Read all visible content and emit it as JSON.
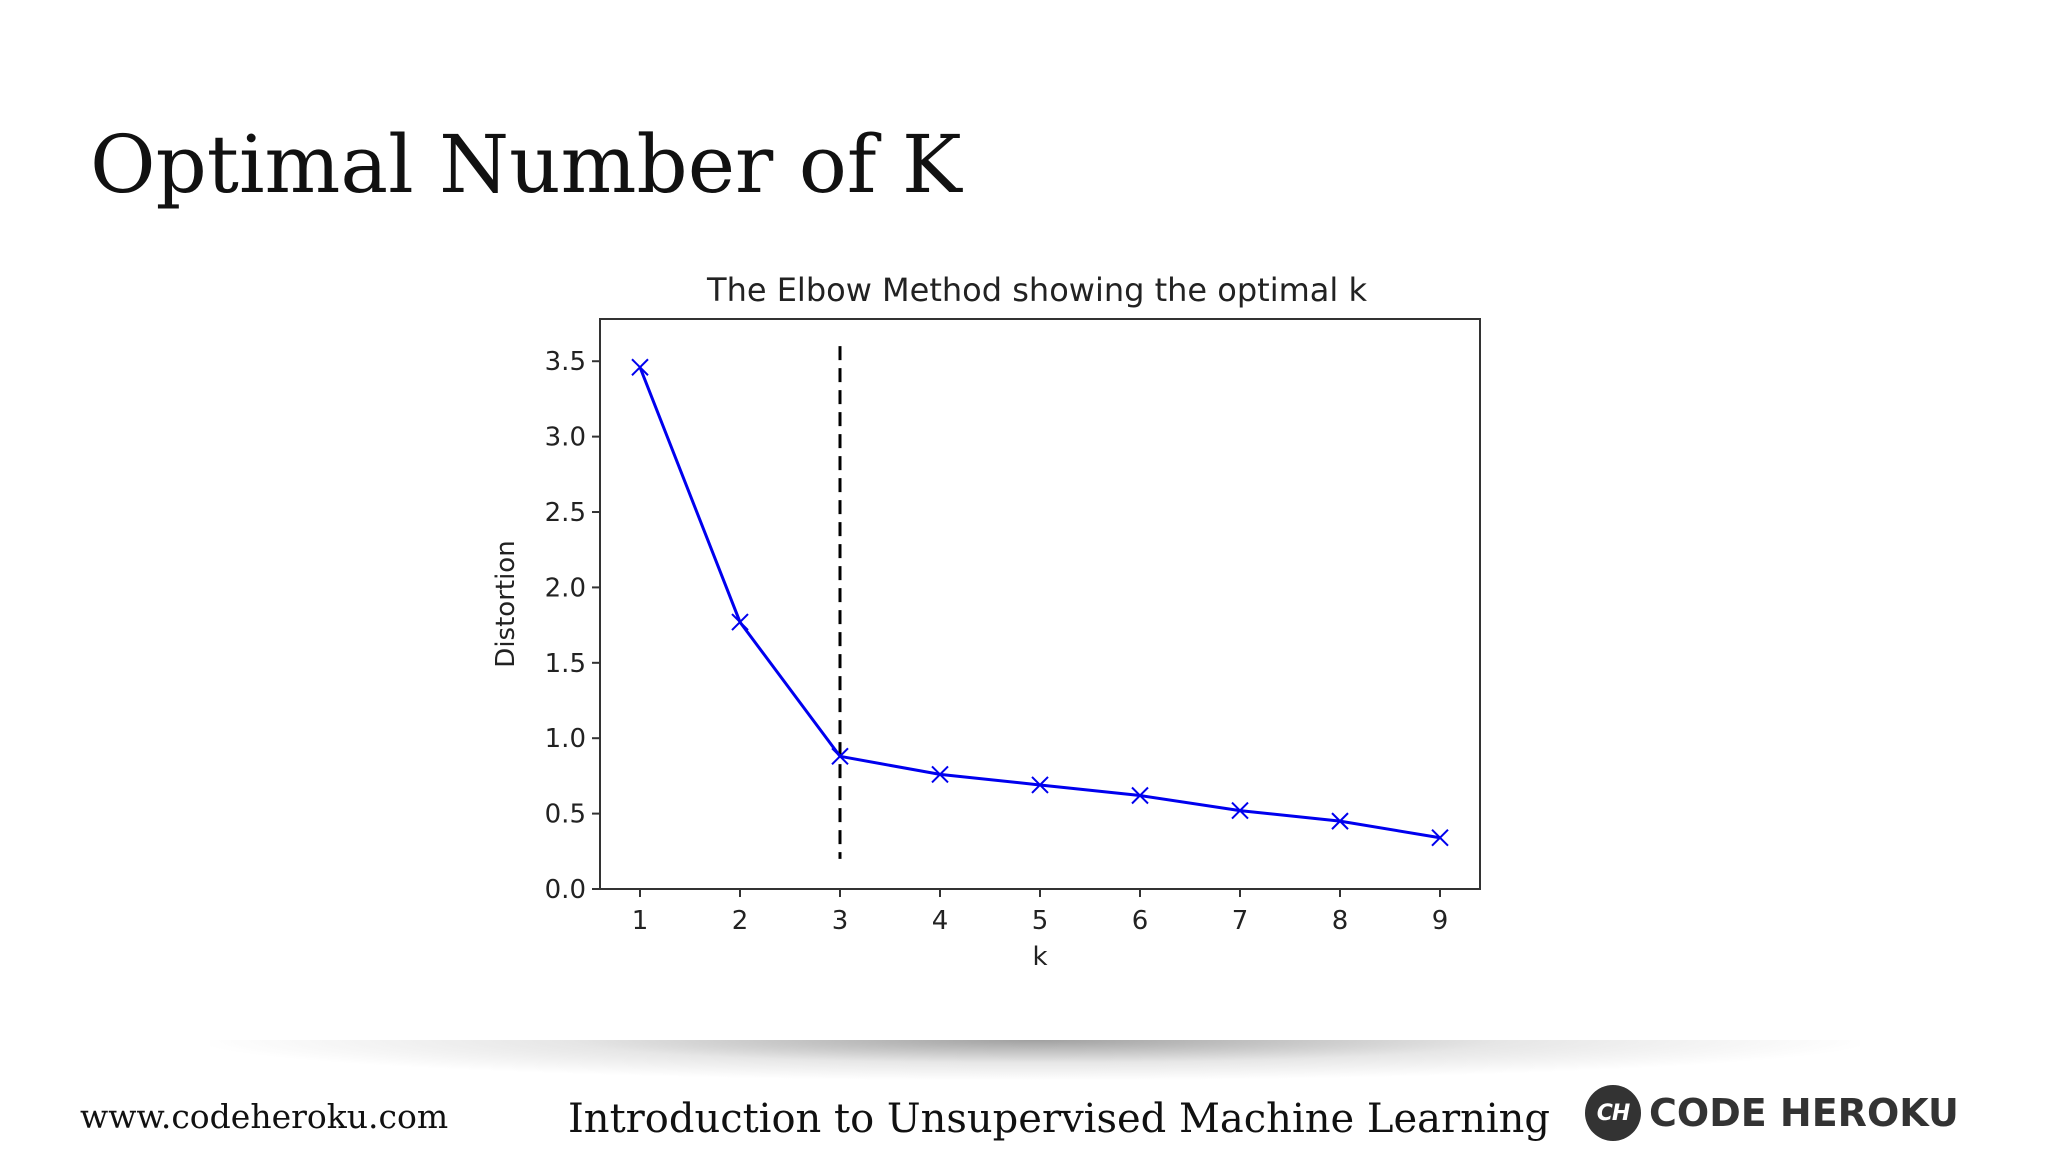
{
  "slide": {
    "title": "Optimal Number of K"
  },
  "footer": {
    "url": "www.codeheroku.com",
    "course": "Introduction to Unsupervised Machine Learning",
    "brand_logo": "CH",
    "brand_name": "CODE HEROKU"
  },
  "chart_data": {
    "type": "line",
    "title": "The Elbow Method showing the optimal k",
    "xlabel": "k",
    "ylabel": "Distortion",
    "x": [
      1,
      2,
      3,
      4,
      5,
      6,
      7,
      8,
      9
    ],
    "series": [
      {
        "values": [
          3.46,
          1.77,
          0.88,
          0.76,
          0.69,
          0.62,
          0.52,
          0.45,
          0.34
        ],
        "color": "#0000ee",
        "marker": "x"
      }
    ],
    "vline": {
      "x": 3,
      "y_range": [
        0.2,
        3.6
      ],
      "style": "dashed",
      "color": "#000000"
    },
    "xlim": [
      0.6,
      9.4
    ],
    "ylim": [
      0,
      3.78
    ],
    "xticks": [
      "1",
      "2",
      "3",
      "4",
      "5",
      "6",
      "7",
      "8",
      "9"
    ],
    "yticks": [
      "0.0",
      "0.5",
      "1.0",
      "1.5",
      "2.0",
      "2.5",
      "3.0",
      "3.5"
    ],
    "grid": false
  }
}
